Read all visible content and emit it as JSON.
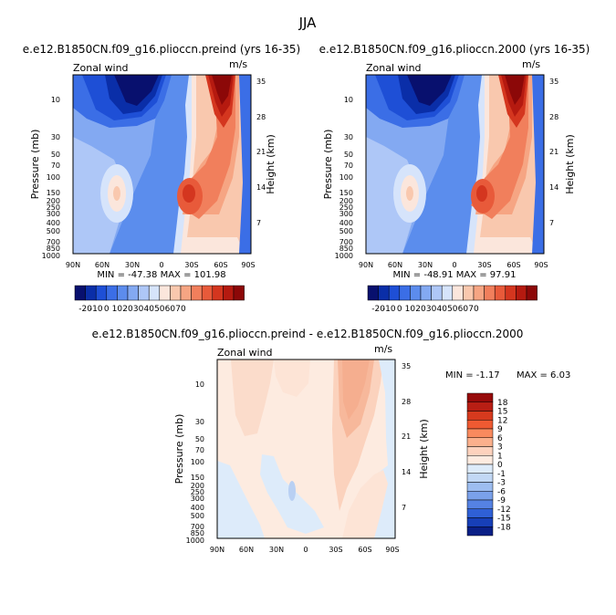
{
  "figure_title": "JJA",
  "panels": [
    {
      "title": "e.e12.B1850CN.f09_g16.plioccn.preind (yrs 16-35)",
      "variable_label": "Zonal wind",
      "units": "m/s",
      "min_max_text": "MIN = -47.38   MAX = 101.98"
    },
    {
      "title": "e.e12.B1850CN.f09_g16.plioccn.2000 (yrs 16-35)",
      "variable_label": "Zonal wind",
      "units": "m/s",
      "min_max_text": "MIN = -48.91   MAX = 97.91"
    },
    {
      "title": "e.e12.B1850CN.f09_g16.plioccn.preind - e.e12.B1850CN.f09_g16.plioccn.2000",
      "variable_label": "Zonal wind",
      "units": "m/s",
      "min_text": "MIN =   -1.17",
      "max_text": "MAX =     6.03"
    }
  ],
  "colorbar_top": {
    "colors": [
      "#08106e",
      "#0a2ea8",
      "#1e4fd6",
      "#3b6ee6",
      "#5c8ced",
      "#83a9f2",
      "#aec7f7",
      "#d6e4fb",
      "#fbe6dc",
      "#f9c8ae",
      "#f6a583",
      "#f17f5c",
      "#e85a3a",
      "#d4361f",
      "#b51a10",
      "#8c0808"
    ],
    "labels": [
      "-20",
      "-10",
      "0",
      "10",
      "20",
      "30",
      "40",
      "50",
      "60",
      "70"
    ]
  },
  "colorbar_diff": {
    "colors": [
      "#960a0a",
      "#b81e14",
      "#d63a1e",
      "#ee5a32",
      "#f98a5e",
      "#fbb08c",
      "#fdd2bd",
      "#fdebe0",
      "#ddebfa",
      "#c2d8f5",
      "#9dbdf0",
      "#7aa1ea",
      "#5582e3",
      "#2f60d6",
      "#173fb7",
      "#0a1f86"
    ],
    "labels": [
      "18",
      "15",
      "12",
      "9",
      "6",
      "3",
      "1",
      "0",
      "-1",
      "-3",
      "-6",
      "-9",
      "-12",
      "-15",
      "-18"
    ]
  },
  "chart_data": [
    {
      "type": "heatmap",
      "panel": "preind (yrs 16-35)",
      "x_ticks": [
        "90N",
        "60N",
        "30N",
        "0",
        "30S",
        "60S",
        "90S"
      ],
      "y_left_label": "Pressure (mb)",
      "y_left_ticks": [
        "10",
        "30",
        "50",
        "70",
        "100",
        "150",
        "200",
        "250",
        "300",
        "400",
        "500",
        "700",
        "850",
        "1000"
      ],
      "y_right_label": "Height (km)",
      "y_right_ticks": [
        "35",
        "28",
        "21",
        "14",
        "7"
      ],
      "min": -47.38,
      "max": 101.98,
      "units": "m/s"
    },
    {
      "type": "heatmap",
      "panel": "2000 (yrs 16-35)",
      "x_ticks": [
        "90N",
        "60N",
        "30N",
        "0",
        "30S",
        "60S",
        "90S"
      ],
      "y_left_label": "Pressure (mb)",
      "y_left_ticks": [
        "10",
        "30",
        "50",
        "70",
        "100",
        "150",
        "200",
        "250",
        "300",
        "400",
        "500",
        "700",
        "850",
        "1000"
      ],
      "y_right_label": "Height (km)",
      "y_right_ticks": [
        "35",
        "28",
        "21",
        "14",
        "7"
      ],
      "min": -48.91,
      "max": 97.91,
      "units": "m/s"
    },
    {
      "type": "heatmap",
      "panel": "preind - 2000",
      "x_ticks": [
        "90N",
        "60N",
        "30N",
        "0",
        "30S",
        "60S",
        "90S"
      ],
      "y_left_label": "Pressure (mb)",
      "y_left_ticks": [
        "10",
        "30",
        "50",
        "70",
        "100",
        "150",
        "200",
        "250",
        "300",
        "400",
        "500",
        "700",
        "850",
        "1000"
      ],
      "y_right_label": "Height (km)",
      "y_right_ticks": [
        "35",
        "28",
        "21",
        "14",
        "7"
      ],
      "min": -1.17,
      "max": 6.03,
      "units": "m/s"
    }
  ]
}
